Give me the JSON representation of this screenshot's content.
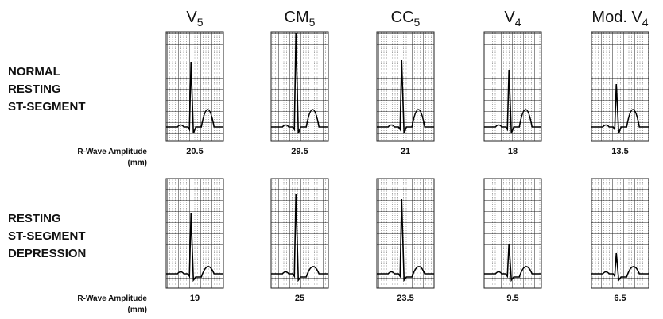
{
  "leads": [
    {
      "name": "V",
      "sub": "5"
    },
    {
      "name": "CM",
      "sub": "5"
    },
    {
      "name": "CC",
      "sub": "5"
    },
    {
      "name": "V",
      "sub": "4"
    },
    {
      "name": "Mod. V",
      "sub": "4"
    }
  ],
  "rows": [
    {
      "label": [
        "NORMAL",
        "RESTING",
        "ST-SEGMENT"
      ],
      "amplitude_label": [
        "R-Wave Amplitude",
        "(mm)"
      ],
      "amplitudes": [
        20.5,
        29.5,
        21,
        18,
        13.5
      ]
    },
    {
      "label": [
        "RESTING",
        "ST-SEGMENT",
        "DEPRESSION"
      ],
      "amplitude_label": [
        "R-Wave Amplitude",
        "(mm)"
      ],
      "amplitudes": [
        19,
        25,
        23.5,
        9.5,
        6.5
      ]
    }
  ]
}
